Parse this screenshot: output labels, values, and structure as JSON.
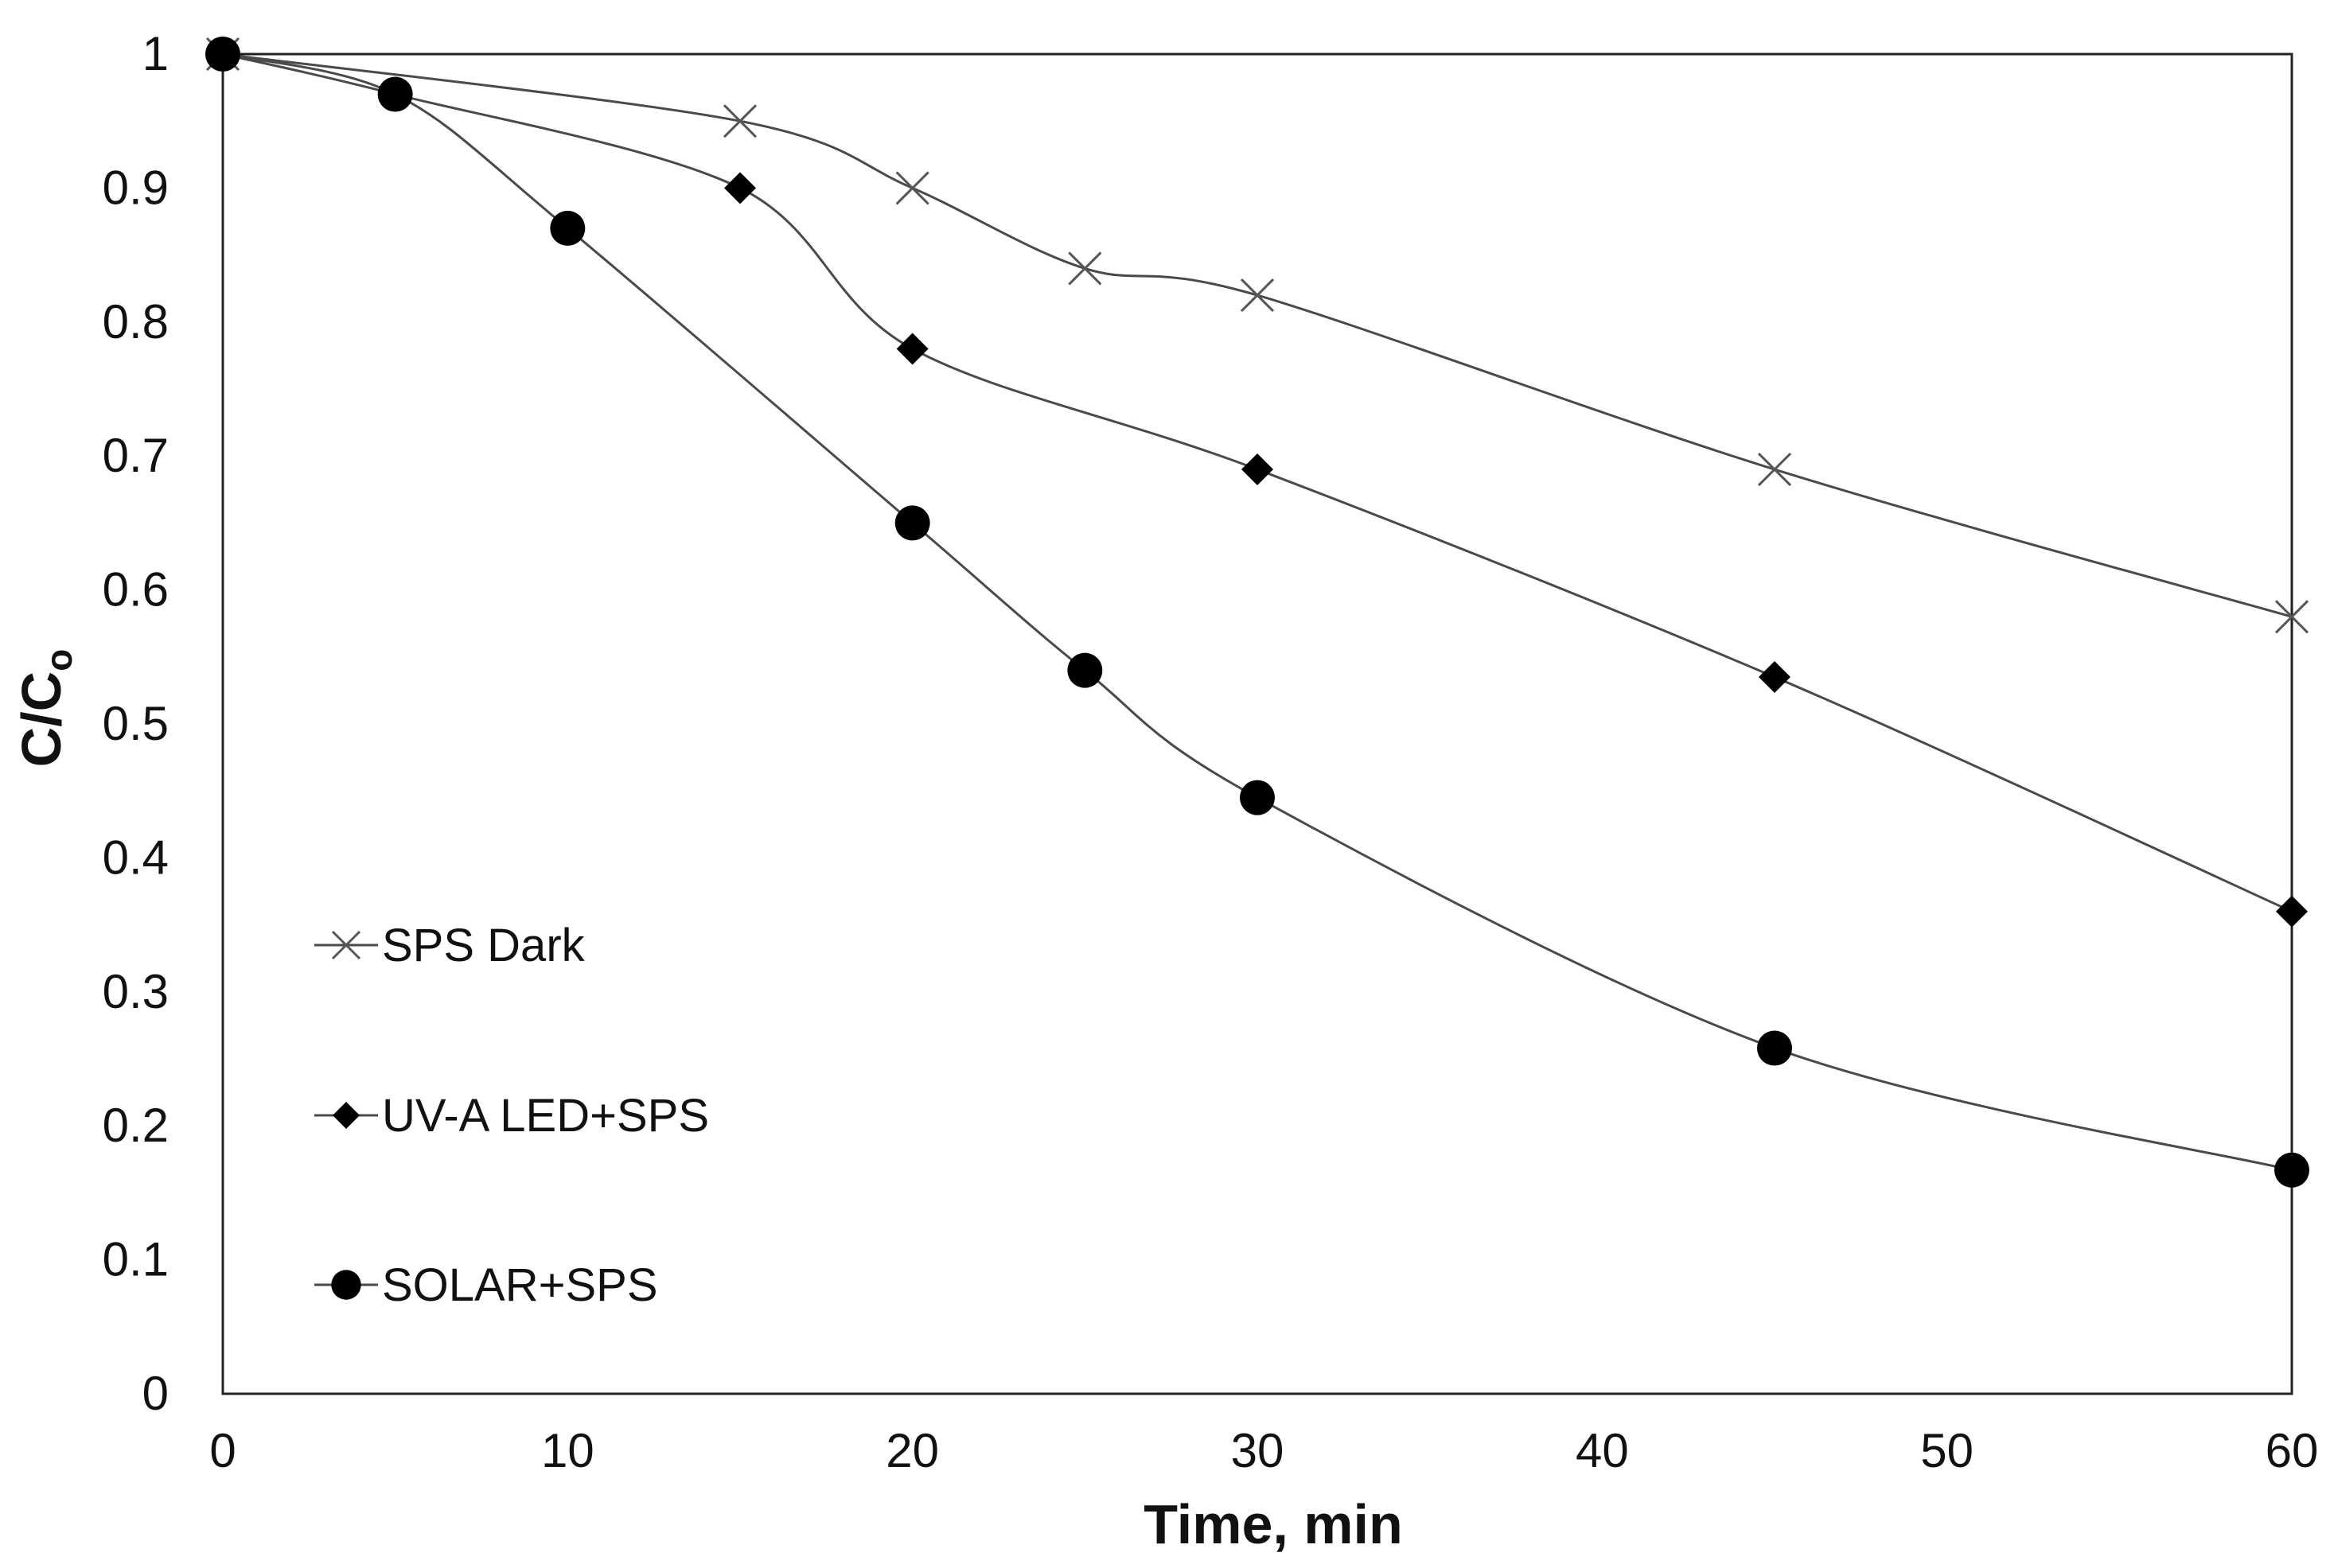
{
  "chart_data": {
    "type": "line",
    "title": "",
    "xlabel": "Time, min",
    "ylabel": "C/Co",
    "ylabel_main": "C/C",
    "ylabel_sub": "o",
    "xlim": [
      0,
      60
    ],
    "ylim": [
      0,
      1
    ],
    "x_ticks": [
      "0",
      "10",
      "20",
      "30",
      "40",
      "50",
      "60"
    ],
    "y_ticks": [
      "0",
      "0.1",
      "0.2",
      "0.3",
      "0.4",
      "0.5",
      "0.6",
      "0.7",
      "0.8",
      "0.9",
      "1"
    ],
    "grid": false,
    "legend_position": "left",
    "smooth_lines": true,
    "line_color": "#4a4a4a",
    "marker_color": "#000000",
    "series": [
      {
        "name": "SPS Dark",
        "marker": "x-cross",
        "x": [
          0,
          15,
          20,
          25,
          30,
          45,
          60
        ],
        "y": [
          1.0,
          0.95,
          0.9,
          0.84,
          0.82,
          0.69,
          0.58
        ]
      },
      {
        "name": "UV-A LED+SPS",
        "marker": "diamond",
        "x": [
          0,
          5,
          15,
          20,
          30,
          45,
          60
        ],
        "y": [
          1.0,
          0.97,
          0.9,
          0.78,
          0.69,
          0.535,
          0.36
        ]
      },
      {
        "name": "SOLAR+SPS",
        "marker": "circle",
        "x": [
          0,
          5,
          10,
          20,
          25,
          30,
          45,
          60
        ],
        "y": [
          1.0,
          0.97,
          0.87,
          0.65,
          0.54,
          0.445,
          0.258,
          0.167
        ]
      }
    ]
  }
}
